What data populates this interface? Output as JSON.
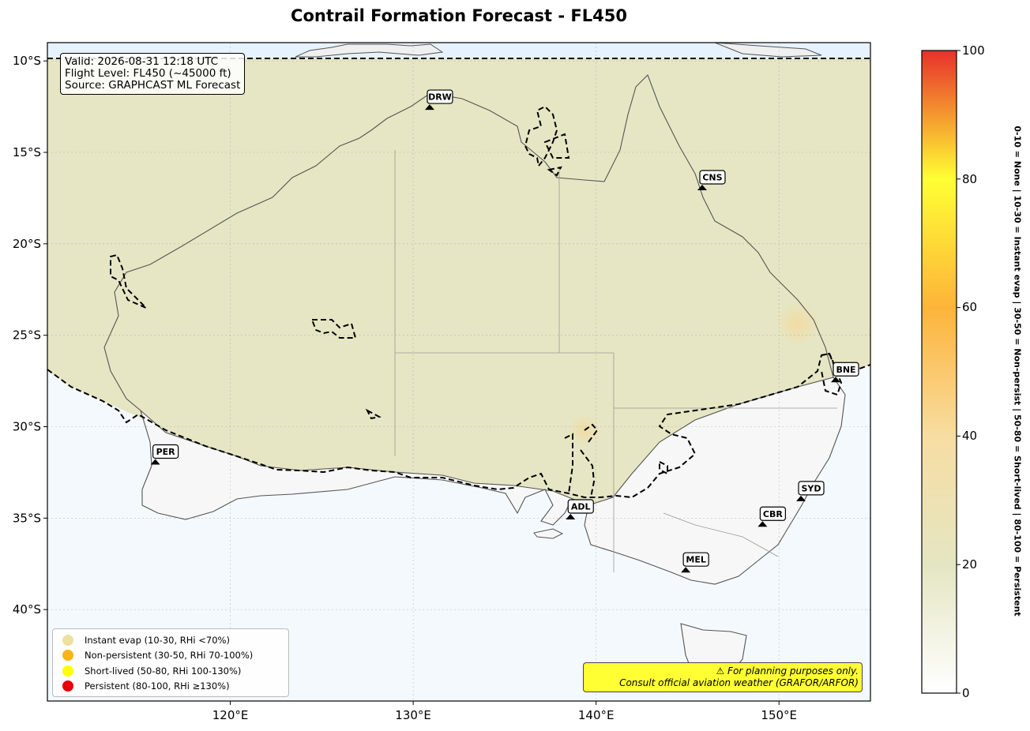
{
  "title": "Contrail Formation Forecast - FL450",
  "info": {
    "valid": "Valid: 2026-08-31 12:18 UTC",
    "flight_level": "Flight Level: FL450 (~45000 ft)",
    "source": "Source: GRAPHCAST ML Forecast"
  },
  "map": {
    "lon_range": [
      110,
      155
    ],
    "lat_range": [
      -45,
      -9
    ],
    "lat_ticks": [
      {
        "lat": -10,
        "label": "10°S"
      },
      {
        "lat": -15,
        "label": "15°S"
      },
      {
        "lat": -20,
        "label": "20°S"
      },
      {
        "lat": -25,
        "label": "25°S"
      },
      {
        "lat": -30,
        "label": "30°S"
      },
      {
        "lat": -35,
        "label": "35°S"
      },
      {
        "lat": -40,
        "label": "40°S"
      }
    ],
    "lon_ticks": [
      {
        "lon": 120,
        "label": "120°E"
      },
      {
        "lon": 130,
        "label": "130°E"
      },
      {
        "lon": 140,
        "label": "140°E"
      },
      {
        "lon": 150,
        "label": "150°E"
      }
    ],
    "cities": [
      {
        "code": "DRW",
        "lon": 130.9,
        "lat": -12.5
      },
      {
        "code": "CNS",
        "lon": 145.8,
        "lat": -16.9
      },
      {
        "code": "PER",
        "lon": 115.9,
        "lat": -31.9
      },
      {
        "code": "BNE",
        "lon": 153.1,
        "lat": -27.4
      },
      {
        "code": "SYD",
        "lon": 151.2,
        "lat": -33.9
      },
      {
        "code": "CBR",
        "lon": 149.1,
        "lat": -35.3
      },
      {
        "code": "ADL",
        "lon": 138.6,
        "lat": -34.9
      },
      {
        "code": "MEL",
        "lon": 144.9,
        "lat": -37.8
      }
    ]
  },
  "legend": [
    {
      "label": "Instant evap (10-30, RHi <70%)",
      "color": "#f0e0a0"
    },
    {
      "label": "Non-persistent (30-50, RHi 70-100%)",
      "color": "#fbb315"
    },
    {
      "label": "Short-lived (50-80, RHi 100-130%)",
      "color": "#ffff00"
    },
    {
      "label": "Persistent (80-100, RHi ≥130%)",
      "color": "#e8000b"
    }
  ],
  "disclaimer": {
    "line1": "⚠ For planning purposes only.",
    "line2": "Consult official aviation weather (GRAFOR/ARFOR)"
  },
  "colorbar": {
    "min": 0,
    "max": 100,
    "ticks": [
      "0",
      "20",
      "40",
      "60",
      "80",
      "100"
    ],
    "label": "0-10 = None  |  10-30 = Instant evap  |  30-50 = Non-persist  |  50-80 = Short-lived  |  80-100 = Persistent"
  }
}
